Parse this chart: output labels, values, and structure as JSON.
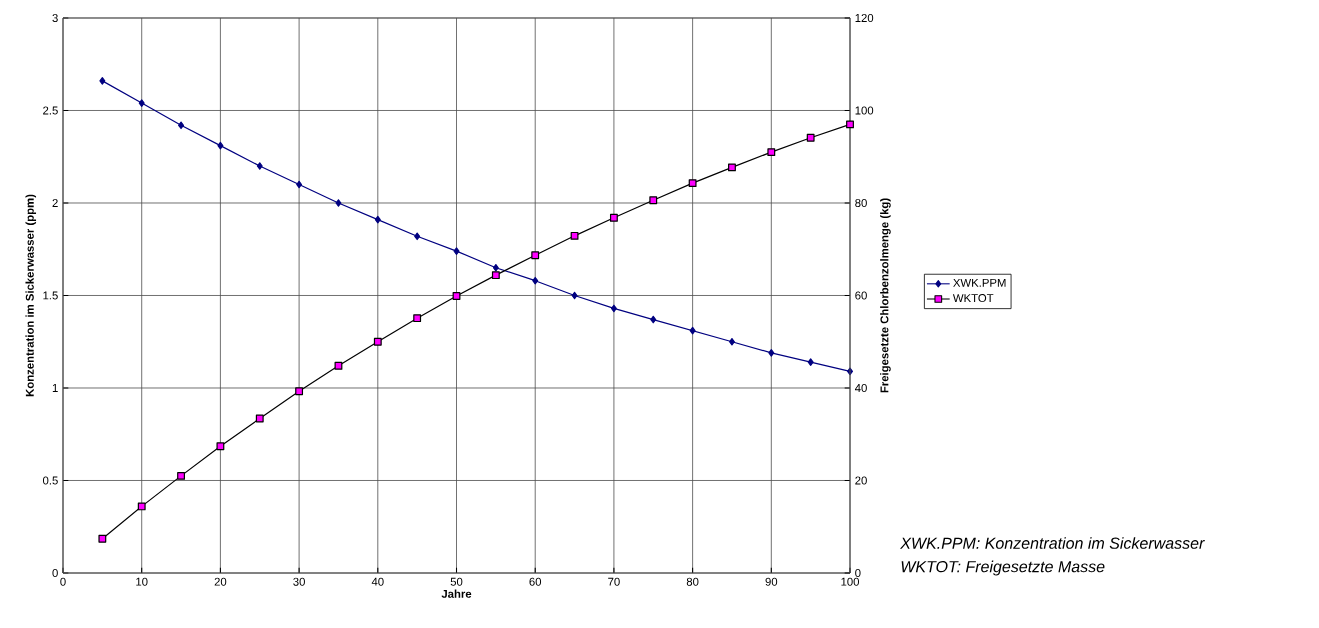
{
  "chart_data": {
    "type": "line",
    "xlabel": "Jahre",
    "ylabel": "Konzentration im Sickerwasser  (ppm)",
    "y2label": "Freigesetzte Chlorbenzolmenge  (kg)",
    "x": [
      5,
      10,
      15,
      20,
      25,
      30,
      35,
      40,
      45,
      50,
      55,
      60,
      65,
      70,
      75,
      80,
      85,
      90,
      95,
      100
    ],
    "series": [
      {
        "name": "XWK.PPM",
        "color": "#000080",
        "marker": "diamond",
        "values": [
          2.66,
          2.54,
          2.42,
          2.31,
          2.2,
          2.1,
          2.0,
          1.91,
          1.82,
          1.74,
          1.65,
          1.58,
          1.5,
          1.43,
          1.37,
          1.31,
          1.25,
          1.19,
          1.14,
          1.09
        ]
      },
      {
        "name": "WKTOT",
        "color": "#ff00ff",
        "marker": "square",
        "axis": "y2",
        "values": [
          7.4,
          14.4,
          21.0,
          27.4,
          33.4,
          39.3,
          44.8,
          50.0,
          55.1,
          59.9,
          64.4,
          68.7,
          72.9,
          76.8,
          80.6,
          84.3,
          87.7,
          91.0,
          94.1,
          97.0
        ]
      }
    ],
    "xlim": [
      0,
      100
    ],
    "xticks": [
      0,
      10,
      20,
      30,
      40,
      50,
      60,
      70,
      80,
      90,
      100
    ],
    "ylim": [
      0,
      3
    ],
    "yticks": [
      0,
      0.5,
      1,
      1.5,
      2,
      2.5,
      3
    ],
    "y2lim": [
      0,
      120
    ],
    "y2ticks": [
      0,
      20,
      40,
      60,
      80,
      100,
      120
    ],
    "grid": true,
    "legend": "right",
    "annotations": [
      "XWK.PPM: Konzentration im Sickerwasser",
      "WKTOT: Freigesetzte Masse"
    ]
  }
}
